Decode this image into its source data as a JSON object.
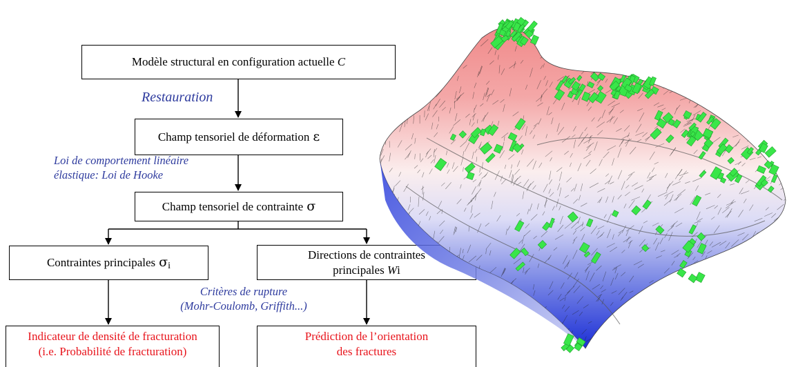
{
  "flowchart": {
    "box_model": {
      "text": "Modèle structural en configuration actuelle",
      "var": "C"
    },
    "label_restauration": "Restauration",
    "box_strain": {
      "text": "Champ tensoriel de déformation",
      "symbol": "ε"
    },
    "label_hooke": {
      "line1": "Loi de comportement linéaire",
      "line2": "élastique: Loi de Hooke"
    },
    "box_stress": {
      "text": "Champ tensoriel de contrainte",
      "symbol": "σ"
    },
    "box_principal": {
      "text": "Contraintes principales",
      "symbol": "σ",
      "subscript": "i"
    },
    "box_directions": {
      "line1": "Directions de contraintes",
      "line2": "principales",
      "var": "W",
      "suffix": "i"
    },
    "label_criteria": {
      "line1": "Critères de rupture",
      "line2": "(Mohr-Coulomb, Griffith...)"
    },
    "box_indicator": {
      "line1": "Indicateur de densité de fracturation",
      "line2": "(i.e. Probabilité de fracturation)"
    },
    "box_prediction": {
      "line1": "Prédiction de l’orientation",
      "line2": "des fractures"
    }
  },
  "colors": {
    "label_blue": "#2e3b9e",
    "output_red": "#e8141c",
    "surface_high": "#f08a8a",
    "surface_low": "#1c2fd6",
    "fracture_green": "#39e649"
  }
}
